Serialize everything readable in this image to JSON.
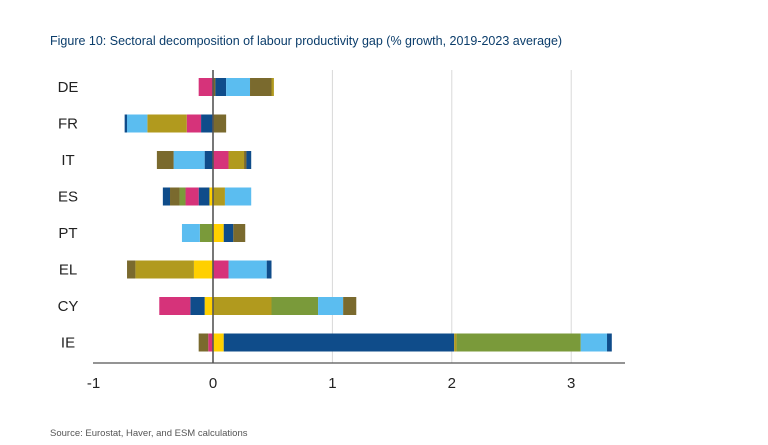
{
  "title": "Figure 10: Sectoral decomposition of labour productivity gap (% growth, 2019-2023 average)",
  "source": "Source: Eurostat, Haver, and ESM calculations",
  "chart_data": {
    "type": "bar",
    "orientation": "horizontal",
    "stacked": true,
    "title": "Figure 10: Sectoral decomposition of labour productivity gap (% growth, 2019-2023 average)",
    "xlabel": "",
    "ylabel": "",
    "xlim": [
      -1,
      3.45
    ],
    "xticks": [
      -1,
      0,
      1,
      2,
      3
    ],
    "grid": true,
    "legend": "none",
    "categories": [
      "DE",
      "FR",
      "IT",
      "ES",
      "PT",
      "EL",
      "CY",
      "IE"
    ],
    "segments": {
      "DE": [
        {
          "color": "#d6337a",
          "value": -0.12
        },
        {
          "color": "#7a6a2e",
          "value": 0.02
        },
        {
          "color": "#0f4c8a",
          "value": 0.09
        },
        {
          "color": "#5bbdf0",
          "value": 0.2
        },
        {
          "color": "#7a6a2e",
          "value": 0.18
        },
        {
          "color": "#b19a1e",
          "value": 0.02
        }
      ],
      "FR": [
        {
          "color": "#0f4c8a",
          "value": -0.1
        },
        {
          "color": "#d6337a",
          "value": -0.12
        },
        {
          "color": "#b19a1e",
          "value": -0.33
        },
        {
          "color": "#5bbdf0",
          "value": -0.17
        },
        {
          "color": "#0f4c8a",
          "value": -0.02
        },
        {
          "color": "#7a6a2e",
          "value": 0.11
        }
      ],
      "IT": [
        {
          "color": "#0f4c8a",
          "value": -0.07
        },
        {
          "color": "#5bbdf0",
          "value": -0.26
        },
        {
          "color": "#7a6a2e",
          "value": -0.14
        },
        {
          "color": "#d6337a",
          "value": 0.13
        },
        {
          "color": "#b19a1e",
          "value": 0.13
        },
        {
          "color": "#7a6a2e",
          "value": 0.02
        },
        {
          "color": "#0f4c8a",
          "value": 0.04
        }
      ],
      "ES": [
        {
          "color": "#ffd000",
          "value": -0.03
        },
        {
          "color": "#0f4c8a",
          "value": -0.09
        },
        {
          "color": "#d6337a",
          "value": -0.11
        },
        {
          "color": "#7a9a3a",
          "value": -0.05
        },
        {
          "color": "#7a6a2e",
          "value": -0.08
        },
        {
          "color": "#0f4c8a",
          "value": -0.06
        },
        {
          "color": "#b19a1e",
          "value": 0.1
        },
        {
          "color": "#5bbdf0",
          "value": 0.22
        }
      ],
      "PT": [
        {
          "color": "#7a9a3a",
          "value": -0.11
        },
        {
          "color": "#5bbdf0",
          "value": -0.15
        },
        {
          "color": "#ffd000",
          "value": 0.09
        },
        {
          "color": "#0f4c8a",
          "value": 0.08
        },
        {
          "color": "#7a6a2e",
          "value": 0.1
        }
      ],
      "EL": [
        {
          "color": "#ffd000",
          "value": -0.16
        },
        {
          "color": "#b19a1e",
          "value": -0.49
        },
        {
          "color": "#7a6a2e",
          "value": -0.07
        },
        {
          "color": "#d6337a",
          "value": 0.13
        },
        {
          "color": "#5bbdf0",
          "value": 0.32
        },
        {
          "color": "#0f4c8a",
          "value": 0.04
        }
      ],
      "CY": [
        {
          "color": "#ffd000",
          "value": -0.07
        },
        {
          "color": "#0f4c8a",
          "value": -0.12
        },
        {
          "color": "#d6337a",
          "value": -0.26
        },
        {
          "color": "#b19a1e",
          "value": 0.49
        },
        {
          "color": "#7a9a3a",
          "value": 0.39
        },
        {
          "color": "#5bbdf0",
          "value": 0.21
        },
        {
          "color": "#7a6a2e",
          "value": 0.11
        }
      ],
      "IE": [
        {
          "color": "#d6337a",
          "value": -0.04
        },
        {
          "color": "#7a6a2e",
          "value": -0.08
        },
        {
          "color": "#ffd000",
          "value": 0.09
        },
        {
          "color": "#0f4c8a",
          "value": 1.93
        },
        {
          "color": "#b19a1e",
          "value": 0.02
        },
        {
          "color": "#7a9a3a",
          "value": 1.04
        },
        {
          "color": "#5bbdf0",
          "value": 0.22
        },
        {
          "color": "#0f4c8a",
          "value": 0.04
        }
      ]
    }
  }
}
